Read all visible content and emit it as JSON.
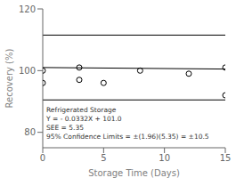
{
  "chart_data": {
    "type": "scatter",
    "xlabel": "Storage Time (Days)",
    "ylabel": "Recovery (%)",
    "xlim": [
      0,
      15
    ],
    "ylim": [
      75,
      120
    ],
    "xticks": [
      0,
      5,
      10,
      15
    ],
    "yticks": [
      80,
      100,
      120
    ],
    "series": [
      {
        "type": "scatter",
        "marker": "circle",
        "color": "black",
        "x": [
          0,
          0,
          3,
          3,
          5,
          8,
          12,
          15,
          15
        ],
        "values": [
          100,
          96,
          101,
          97,
          96,
          100,
          99,
          101,
          92
        ]
      },
      {
        "type": "line",
        "color": "black",
        "x": [
          0,
          15
        ],
        "values": [
          101.0,
          100.502
        ]
      },
      {
        "type": "line",
        "color": "black",
        "x": [
          0,
          15
        ],
        "values": [
          111.5,
          111.5
        ]
      },
      {
        "type": "line",
        "color": "black",
        "x": [
          0,
          15
        ],
        "values": [
          90.5,
          90.5
        ]
      }
    ],
    "annotations": [
      "Refrigerated Storage",
      "Y = - 0.0332X + 101.0",
      "SEE = 5.35",
      "95% Confidence Limits = ±(1.96)(5.35) = ±10.5"
    ]
  }
}
